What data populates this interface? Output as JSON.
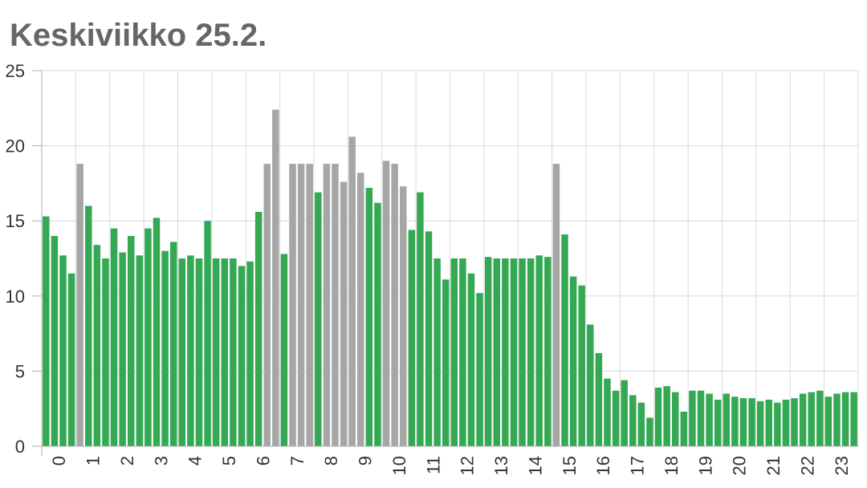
{
  "title": "Keskiviikko 25.2.",
  "chart_data": {
    "type": "bar",
    "title": "Keskiviikko 25.2.",
    "xlabel": "",
    "ylabel": "",
    "ylim": [
      0,
      25
    ],
    "yticks": [
      "0",
      "5",
      "10",
      "15",
      "20",
      "25"
    ],
    "grid": true,
    "legend": "none",
    "hour_labels": [
      "0",
      "1",
      "2",
      "3",
      "4",
      "5",
      "6",
      "7",
      "8",
      "9",
      "10",
      "11",
      "12",
      "13",
      "14",
      "15",
      "16",
      "17",
      "18",
      "19",
      "20",
      "21",
      "22",
      "23"
    ],
    "colors": {
      "low": "#34a853",
      "high": "#a6a6a6"
    },
    "values": [
      15.3,
      14.0,
      12.7,
      11.5,
      18.8,
      16.0,
      13.4,
      12.5,
      14.5,
      12.9,
      14.0,
      12.7,
      14.5,
      15.2,
      13.0,
      13.6,
      12.5,
      12.7,
      12.5,
      15.0,
      12.5,
      12.5,
      12.5,
      12.0,
      12.3,
      15.6,
      18.8,
      22.4,
      12.8,
      18.8,
      18.8,
      18.8,
      16.9,
      18.8,
      18.8,
      17.6,
      20.6,
      18.2,
      17.2,
      16.2,
      19.0,
      18.8,
      17.3,
      14.4,
      16.9,
      14.3,
      12.5,
      11.1,
      12.5,
      12.5,
      11.5,
      10.2,
      12.6,
      12.5,
      12.5,
      12.5,
      12.5,
      12.5,
      12.7,
      12.6,
      18.8,
      14.1,
      11.3,
      10.7,
      8.1,
      6.2,
      4.5,
      3.7,
      4.4,
      3.4,
      2.9,
      1.9,
      3.9,
      4.0,
      3.6,
      2.3,
      3.7,
      3.7,
      3.5,
      3.1,
      3.5,
      3.3,
      3.2,
      3.2,
      3.0,
      3.1,
      2.9,
      3.1,
      3.2,
      3.5,
      3.6,
      3.7,
      3.3,
      3.5,
      3.6,
      3.6
    ],
    "high_indices": [
      4,
      26,
      27,
      29,
      30,
      31,
      33,
      34,
      35,
      36,
      37,
      40,
      41,
      42,
      60
    ]
  }
}
